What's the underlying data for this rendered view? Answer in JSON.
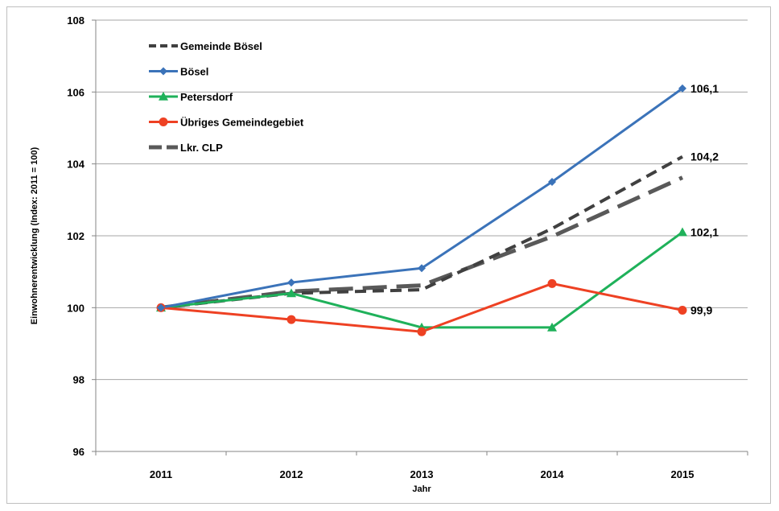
{
  "chart_data": {
    "type": "line",
    "title": "",
    "xlabel": "Jahr",
    "ylabel": "Einwohnerentwicklung (Index: 2011 = 100)",
    "categories": [
      "2011",
      "2012",
      "2013",
      "2014",
      "2015"
    ],
    "ylim": [
      96,
      108
    ],
    "yticks": [
      "96",
      "98",
      "100",
      "102",
      "104",
      "106",
      "108"
    ],
    "grid": "horizontal",
    "legend_position": "top-left inside plot",
    "series": [
      {
        "name": "Gemeinde Bösel",
        "values": [
          100,
          100.4,
          100.5,
          102.2,
          104.2
        ],
        "color": "#404040",
        "style": "dashed",
        "marker": "none",
        "end_label": "104,2"
      },
      {
        "name": "Bösel",
        "values": [
          100,
          100.7,
          101.1,
          103.5,
          106.1
        ],
        "color": "#3b73b9",
        "style": "solid",
        "marker": "diamond",
        "end_label": "106,1"
      },
      {
        "name": "Petersdorf",
        "values": [
          100,
          100.4,
          99.45,
          99.45,
          102.1
        ],
        "color": "#1fb15a",
        "style": "solid",
        "marker": "triangle",
        "end_label": "102,1"
      },
      {
        "name": "Übriges Gemeindegebiet",
        "values": [
          100,
          99.67,
          99.33,
          100.67,
          99.93
        ],
        "color": "#ee4123",
        "style": "solid",
        "marker": "circle",
        "end_label": "99,9"
      },
      {
        "name": "Lkr. CLP",
        "values": [
          100,
          100.45,
          100.62,
          101.98,
          103.62
        ],
        "color": "#595959",
        "style": "longdash",
        "marker": "none",
        "end_label": ""
      }
    ]
  }
}
